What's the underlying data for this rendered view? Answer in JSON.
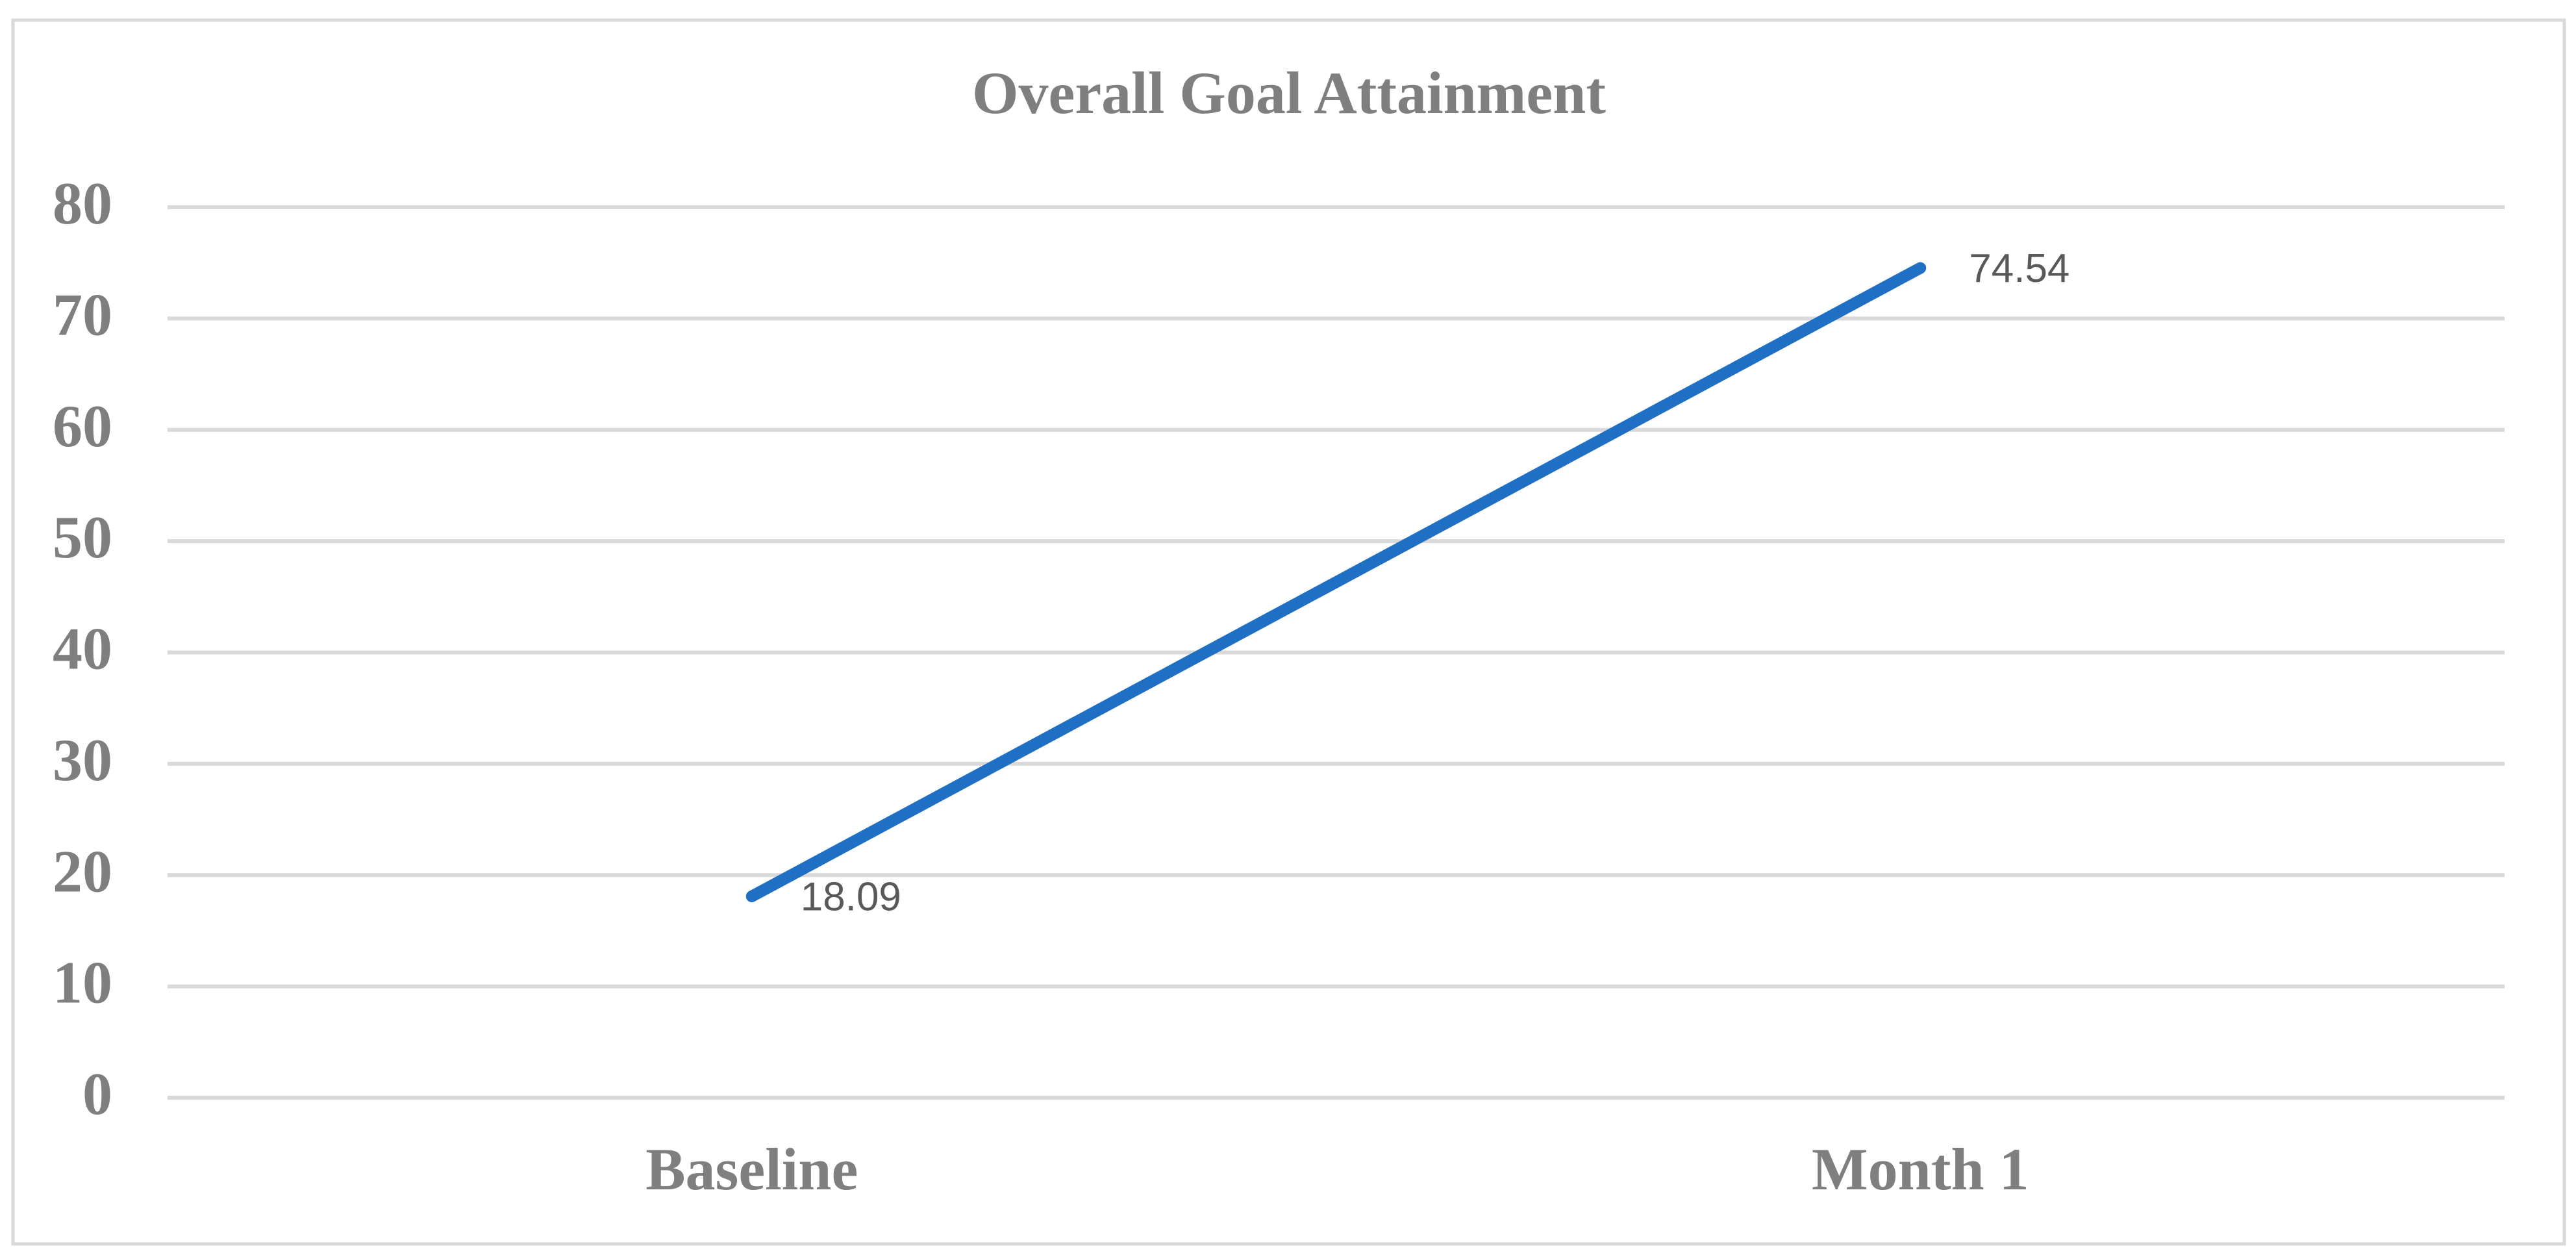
{
  "chart_data": {
    "type": "line",
    "title": "Overall Goal Attainment",
    "categories": [
      "Baseline",
      "Month 1"
    ],
    "series": [
      {
        "name": "Overall Goal Attainment",
        "color": "#1f6fc5",
        "values": [
          18.09,
          74.54
        ]
      }
    ],
    "ylim": [
      0,
      80
    ],
    "yticks": [
      0,
      10,
      20,
      30,
      40,
      50,
      60,
      70,
      80
    ],
    "grid": true
  }
}
